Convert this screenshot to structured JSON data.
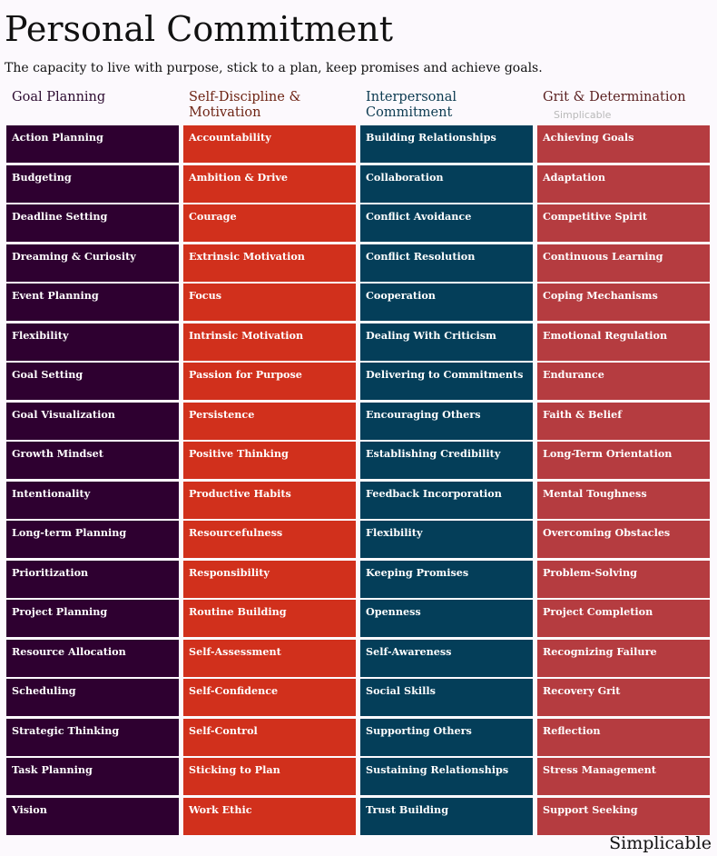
{
  "title": "Personal Commitment",
  "subtitle": "The capacity to live with purpose, stick to a plan, keep promises and achieve goals.",
  "watermark": "Simplicable",
  "brand": "Simplicable",
  "columns": [
    {
      "heading_line1": "Goal Planning",
      "heading_line2": "",
      "heading_color": "#2c0b30",
      "cell_color": "#2e0030",
      "items": [
        "Action Planning",
        "Budgeting",
        "Deadline Setting",
        "Dreaming & Curiosity",
        "Event Planning",
        "Flexibility",
        "Goal Setting",
        "Goal Visualization",
        "Growth Mindset",
        "Intentionality",
        "Long-term Planning",
        "Prioritization",
        "Project Planning",
        "Resource Allocation",
        "Scheduling",
        "Strategic Thinking",
        "Task Planning",
        "Vision"
      ]
    },
    {
      "heading_line1": "Self-Discipline &",
      "heading_line2": "Motivation",
      "heading_color": "#6e2414",
      "cell_color": "#d1301c",
      "items": [
        "Accountability",
        "Ambition & Drive",
        "Courage",
        "Extrinsic Motivation",
        "Focus",
        "Intrinsic Motivation",
        "Passion for Purpose",
        "Persistence",
        "Positive Thinking",
        "Productive Habits",
        "Resourcefulness",
        "Responsibility",
        "Routine Building",
        "Self-Assessment",
        "Self-Confidence",
        "Self-Control",
        "Sticking to Plan",
        "Work Ethic"
      ]
    },
    {
      "heading_line1": "Interpersonal",
      "heading_line2": "Commitment",
      "heading_color": "#0b3a50",
      "cell_color": "#043e59",
      "items": [
        "Building Relationships",
        "Collaboration",
        "Conflict Avoidance",
        "Conflict Resolution",
        "Cooperation",
        "Dealing With Criticism",
        "Delivering to Commitments",
        "Encouraging Others",
        "Establishing Credibility",
        "Feedback Incorporation",
        "Flexibility",
        "Keeping Promises",
        "Openness",
        "Self-Awareness",
        "Social Skills",
        "Supporting Others",
        "Sustaining Relationships",
        "Trust Building"
      ]
    },
    {
      "heading_line1": "Grit & Determination",
      "heading_line2": "",
      "heading_color": "#5a1f1f",
      "cell_color": "#b53c40",
      "items": [
        "Achieving Goals",
        "Adaptation",
        "Competitive Spirit",
        "Continuous Learning",
        "Coping Mechanisms",
        "Emotional Regulation",
        "Endurance",
        "Faith & Belief",
        "Long-Term Orientation",
        "Mental Toughness",
        "Overcoming Obstacles",
        "Problem-Solving",
        "Project Completion",
        "Recognizing Failure",
        "Recovery Grit",
        "Reflection",
        "Stress Management",
        "Support Seeking"
      ]
    }
  ]
}
